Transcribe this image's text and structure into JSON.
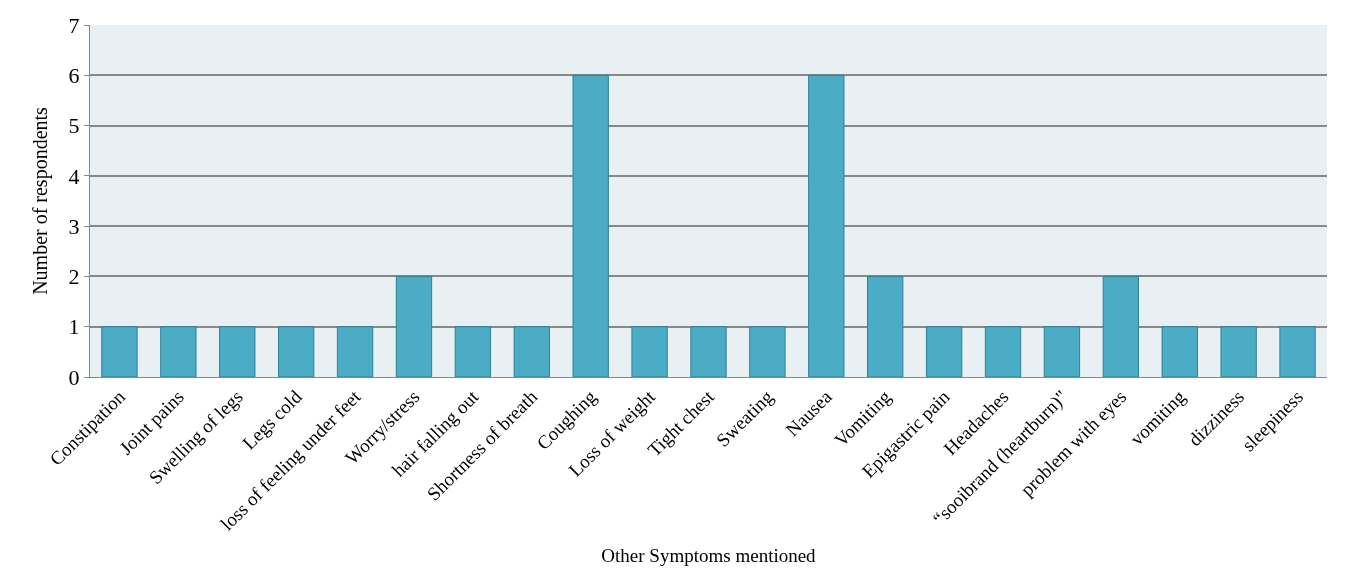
{
  "chart_data": {
    "type": "bar",
    "xlabel": "Other Symptoms mentioned",
    "ylabel": "Number of respondents",
    "categories": [
      "Constipation",
      "Joint pains",
      "Swelling of legs",
      "Legs cold",
      "loss of feeling under feet",
      "Worry/stress",
      "hair falling out",
      "Shortness of breath",
      "Coughing",
      "Loss of weight",
      "Tight chest",
      "Sweating",
      "Nausea",
      "Vomiting",
      "Epigastric pain",
      "Headaches",
      "“sooibrand (heartburn)\"",
      "problem with eyes",
      "vomiting",
      "dizziness",
      "sleepiness"
    ],
    "values": [
      1,
      1,
      1,
      1,
      1,
      2,
      1,
      1,
      6,
      1,
      1,
      1,
      6,
      2,
      1,
      1,
      1,
      2,
      1,
      1,
      1
    ],
    "color": "#4bacc6",
    "ylim": [
      0,
      7
    ],
    "yticks": [
      0,
      1,
      2,
      3,
      4,
      5,
      6,
      7
    ],
    "grid": "y"
  }
}
